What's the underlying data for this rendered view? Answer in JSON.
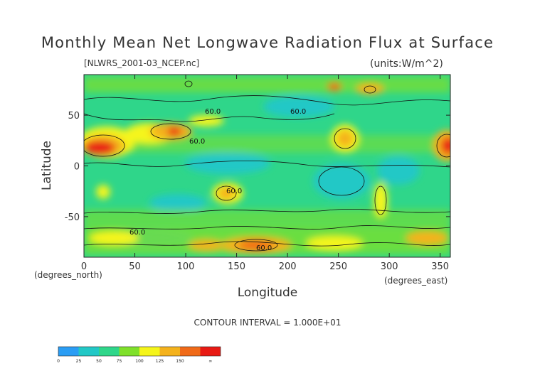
{
  "chart_data": {
    "type": "heatmap",
    "title": "Monthly Mean Net Longwave Radiation Flux at Surface",
    "subtitle": "[NLWRS_2001-03_NCEP.nc]",
    "units_label": "(units:W/m^2)",
    "xlabel": "Longitude",
    "ylabel": "Latitude",
    "x_units": "(degrees_north)",
    "y_units": "(degrees_east)",
    "xlim": [
      0,
      360
    ],
    "ylim": [
      -90,
      90
    ],
    "x_ticks": [
      "0",
      "50",
      "100",
      "150",
      "200",
      "250",
      "300",
      "350"
    ],
    "y_ticks": [
      "50",
      "0",
      "-50"
    ],
    "contour_interval": "CONTOUR INTERVAL = 1.000E+01",
    "contour_labels": [
      "60.0",
      "60.0",
      "60.0",
      "60.0",
      "60.0",
      "60.0"
    ],
    "colorbar": {
      "labels": [
        "0",
        "25",
        "50",
        "75",
        "100",
        "125",
        "150",
        "∞"
      ],
      "colors": [
        "#2a9df4",
        "#22c8c6",
        "#2fd68a",
        "#7fe02a",
        "#f5f51a",
        "#f4b21c",
        "#f06a18",
        "#e81a14"
      ]
    }
  }
}
